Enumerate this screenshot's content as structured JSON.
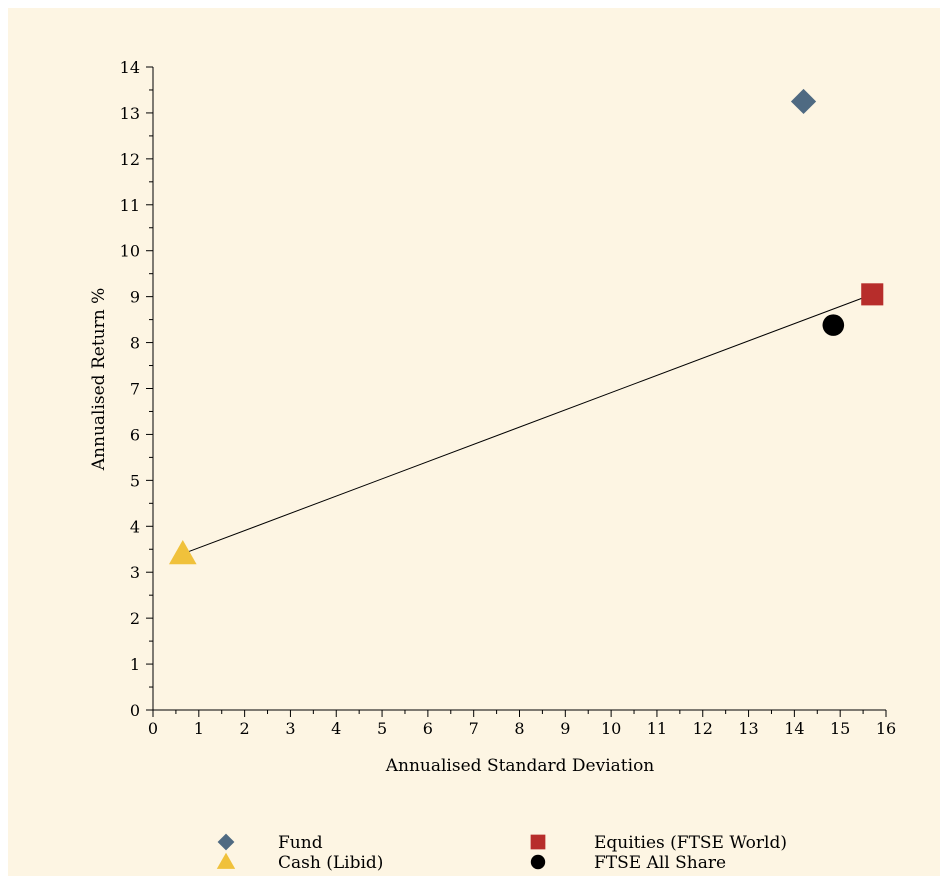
{
  "chart_data": {
    "type": "scatter",
    "xlabel": "Annualised Standard Deviation",
    "ylabel": "Annualised Return %",
    "xlim": [
      0,
      16
    ],
    "ylim": [
      0,
      14
    ],
    "x_ticks": [
      0,
      1,
      2,
      3,
      4,
      5,
      6,
      7,
      8,
      9,
      10,
      11,
      12,
      13,
      14,
      15,
      16
    ],
    "y_ticks": [
      0,
      1,
      2,
      3,
      4,
      5,
      6,
      7,
      8,
      9,
      10,
      11,
      12,
      13,
      14
    ],
    "grid": false,
    "legend_placement": "bottom",
    "series": [
      {
        "name": "Fund",
        "marker": "diamond",
        "color": "#4f6a82",
        "points": [
          {
            "x": 14.2,
            "y": 13.25
          }
        ]
      },
      {
        "name": "Cash (Libid)",
        "marker": "triangle",
        "color": "#f0c13b",
        "points": [
          {
            "x": 0.65,
            "y": 3.4
          }
        ]
      },
      {
        "name": "Equities (FTSE World)",
        "marker": "square",
        "color": "#b72d2b",
        "points": [
          {
            "x": 15.7,
            "y": 9.05
          }
        ]
      },
      {
        "name": "FTSE All Share",
        "marker": "circle",
        "color": "#000000",
        "points": [
          {
            "x": 14.85,
            "y": 8.38
          }
        ]
      }
    ],
    "line": {
      "from": {
        "x": 0.65,
        "y": 3.4
      },
      "to": {
        "x": 15.7,
        "y": 9.05
      },
      "color": "#000000"
    }
  }
}
